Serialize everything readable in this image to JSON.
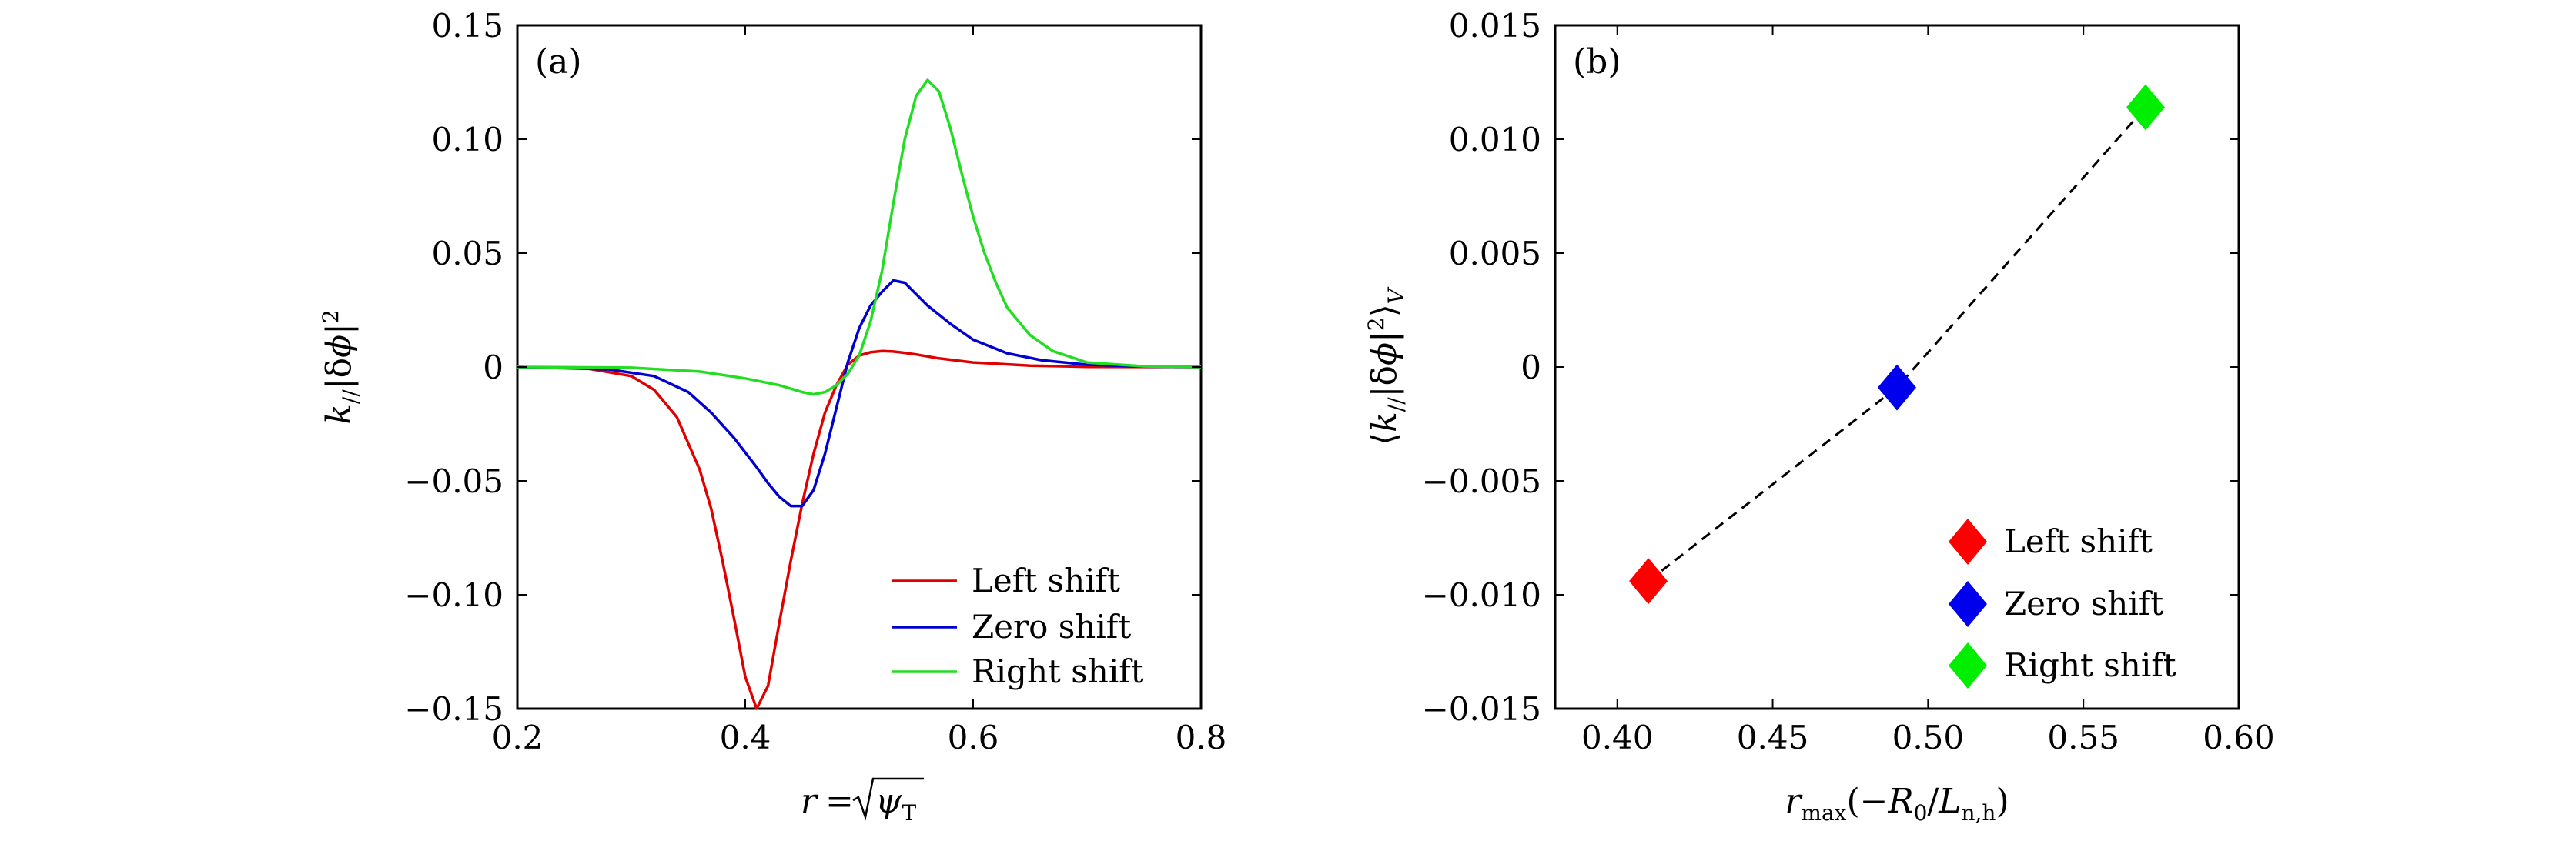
{
  "chart_data": [
    {
      "panel": "(a)",
      "type": "line",
      "xlabel": "r = √ψT",
      "ylabel": "k// |δϕ|²",
      "xlim": [
        0.2,
        0.8
      ],
      "ylim": [
        -0.15,
        0.15
      ],
      "xticks": [
        0.2,
        0.4,
        0.6,
        0.8
      ],
      "xtick_labels": [
        "0.2",
        "0.4",
        "0.6",
        "0.8"
      ],
      "yticks": [
        -0.15,
        -0.1,
        -0.05,
        0,
        0.05,
        0.1,
        0.15
      ],
      "ytick_labels": [
        "−0.15",
        "−0.10",
        "−0.05",
        "0",
        "0.05",
        "0.10",
        "0.15"
      ],
      "legend_position": "bottom-right",
      "series": [
        {
          "name": "Left shift",
          "color": "#e00000",
          "x": [
            0.2,
            0.26,
            0.3,
            0.32,
            0.34,
            0.36,
            0.37,
            0.38,
            0.39,
            0.4,
            0.41,
            0.42,
            0.43,
            0.44,
            0.45,
            0.46,
            0.47,
            0.48,
            0.49,
            0.5,
            0.51,
            0.52,
            0.53,
            0.54,
            0.55,
            0.57,
            0.6,
            0.65,
            0.7,
            0.8
          ],
          "y": [
            0,
            -0.0005,
            -0.004,
            -0.01,
            -0.022,
            -0.045,
            -0.062,
            -0.085,
            -0.11,
            -0.136,
            -0.15,
            -0.14,
            -0.112,
            -0.085,
            -0.06,
            -0.038,
            -0.02,
            -0.008,
            0.001,
            0.005,
            0.0065,
            0.007,
            0.0068,
            0.0062,
            0.0055,
            0.0038,
            0.002,
            0.0006,
            0.0001,
            0
          ]
        },
        {
          "name": "Zero shift",
          "color": "#0000d0",
          "x": [
            0.2,
            0.28,
            0.32,
            0.35,
            0.37,
            0.39,
            0.41,
            0.42,
            0.43,
            0.44,
            0.45,
            0.46,
            0.47,
            0.48,
            0.49,
            0.5,
            0.51,
            0.52,
            0.53,
            0.54,
            0.55,
            0.56,
            0.58,
            0.6,
            0.63,
            0.66,
            0.7,
            0.75,
            0.8
          ],
          "y": [
            0,
            -0.001,
            -0.004,
            -0.011,
            -0.02,
            -0.031,
            -0.044,
            -0.051,
            -0.057,
            -0.061,
            -0.061,
            -0.054,
            -0.038,
            -0.018,
            0.002,
            0.017,
            0.027,
            0.033,
            0.038,
            0.037,
            0.032,
            0.027,
            0.019,
            0.012,
            0.006,
            0.003,
            0.001,
            0.0002,
            0
          ]
        },
        {
          "name": "Right shift",
          "color": "#22dd22",
          "x": [
            0.2,
            0.3,
            0.36,
            0.4,
            0.43,
            0.45,
            0.46,
            0.47,
            0.48,
            0.49,
            0.5,
            0.51,
            0.52,
            0.53,
            0.54,
            0.55,
            0.56,
            0.57,
            0.58,
            0.59,
            0.6,
            0.61,
            0.62,
            0.63,
            0.65,
            0.67,
            0.7,
            0.75,
            0.8
          ],
          "y": [
            0,
            -0.0003,
            -0.002,
            -0.005,
            -0.008,
            -0.011,
            -0.012,
            -0.011,
            -0.008,
            -0.003,
            0.005,
            0.02,
            0.042,
            0.072,
            0.1,
            0.119,
            0.126,
            0.121,
            0.105,
            0.085,
            0.066,
            0.05,
            0.037,
            0.026,
            0.014,
            0.007,
            0.002,
            0.0003,
            0
          ]
        }
      ]
    },
    {
      "panel": "(b)",
      "type": "scatter",
      "xlabel": "rmax(−R0/Ln,h)",
      "ylabel": "⟨k// |δϕ|²⟩V",
      "xlim": [
        0.38,
        0.6
      ],
      "ylim": [
        -0.015,
        0.015
      ],
      "xticks": [
        0.4,
        0.45,
        0.5,
        0.55,
        0.6
      ],
      "xtick_labels": [
        "0.40",
        "0.45",
        "0.50",
        "0.55",
        "0.60"
      ],
      "yticks": [
        -0.015,
        -0.01,
        -0.005,
        0,
        0.005,
        0.01,
        0.015
      ],
      "ytick_labels": [
        "−0.015",
        "−0.010",
        "−0.005",
        "0",
        "0.005",
        "0.010",
        "0.015"
      ],
      "legend_position": "bottom-right",
      "connector": "dashed",
      "points": [
        {
          "name": "Left shift",
          "color": "#ff0000",
          "x": 0.41,
          "y": -0.0094
        },
        {
          "name": "Zero shift",
          "color": "#0000ee",
          "x": 0.49,
          "y": -0.0009
        },
        {
          "name": "Right shift",
          "color": "#00ee00",
          "x": 0.57,
          "y": 0.0114
        }
      ]
    }
  ]
}
